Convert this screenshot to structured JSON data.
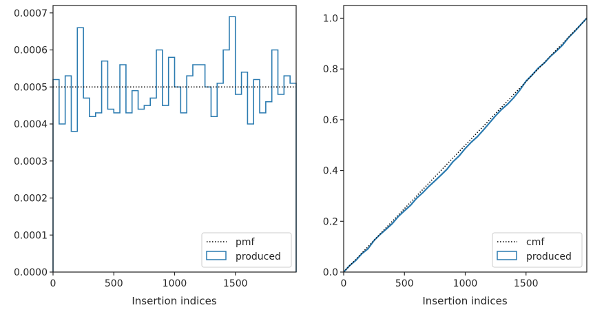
{
  "chart_data": [
    {
      "type": "line",
      "subtype": "step-histogram",
      "xlabel": "Insertion indices",
      "ylabel": "",
      "xlim": [
        0,
        2000
      ],
      "ylim": [
        0,
        0.00072
      ],
      "xticks": [
        0,
        500,
        1000,
        1500
      ],
      "xtick_labels": [
        "0",
        "500",
        "1000",
        "1500"
      ],
      "yticks": [
        0,
        0.0001,
        0.0002,
        0.0003,
        0.0004,
        0.0005,
        0.0006,
        0.0007
      ],
      "ytick_labels": [
        "0.0000",
        "0.0001",
        "0.0002",
        "0.0003",
        "0.0004",
        "0.0005",
        "0.0006",
        "0.0007"
      ],
      "grid": false,
      "legend_position": "lower-right",
      "series": [
        {
          "name": "pmf",
          "style": "dotted",
          "color": "#000000",
          "x": [
            0,
            2000
          ],
          "y": [
            0.0005,
            0.0005
          ]
        },
        {
          "name": "produced",
          "style": "step",
          "color": "#2b7bb0",
          "bin_width": 50,
          "values": [
            0.00052,
            0.0004,
            0.00053,
            0.00038,
            0.00066,
            0.00047,
            0.00042,
            0.00043,
            0.00057,
            0.00044,
            0.00043,
            0.00056,
            0.00043,
            0.00049,
            0.00044,
            0.00045,
            0.00047,
            0.0006,
            0.00045,
            0.00058,
            0.0005,
            0.00043,
            0.00053,
            0.00056,
            0.00056,
            0.0005,
            0.00042,
            0.00051,
            0.0006,
            0.00069,
            0.00048,
            0.00054,
            0.0004,
            0.00052,
            0.00043,
            0.00046,
            0.0006,
            0.00048,
            0.00053,
            0.00051
          ]
        }
      ]
    },
    {
      "type": "line",
      "xlabel": "Insertion indices",
      "ylabel": "",
      "xlim": [
        0,
        2000
      ],
      "ylim": [
        0,
        1.05
      ],
      "xticks": [
        0,
        500,
        1000,
        1500
      ],
      "xtick_labels": [
        "0",
        "500",
        "1000",
        "1500"
      ],
      "yticks": [
        0,
        0.2,
        0.4,
        0.6,
        0.8,
        1.0
      ],
      "ytick_labels": [
        "0.0",
        "0.2",
        "0.4",
        "0.6",
        "0.8",
        "1.0"
      ],
      "grid": false,
      "legend_position": "lower-right",
      "series": [
        {
          "name": "cmf",
          "style": "dotted",
          "color": "#000000",
          "x": [
            0,
            2000
          ],
          "y": [
            0,
            1.0
          ]
        },
        {
          "name": "produced",
          "style": "solid",
          "color": "#2b7bb0",
          "derived_from": "cumulative sum of left panel histogram"
        }
      ]
    }
  ]
}
